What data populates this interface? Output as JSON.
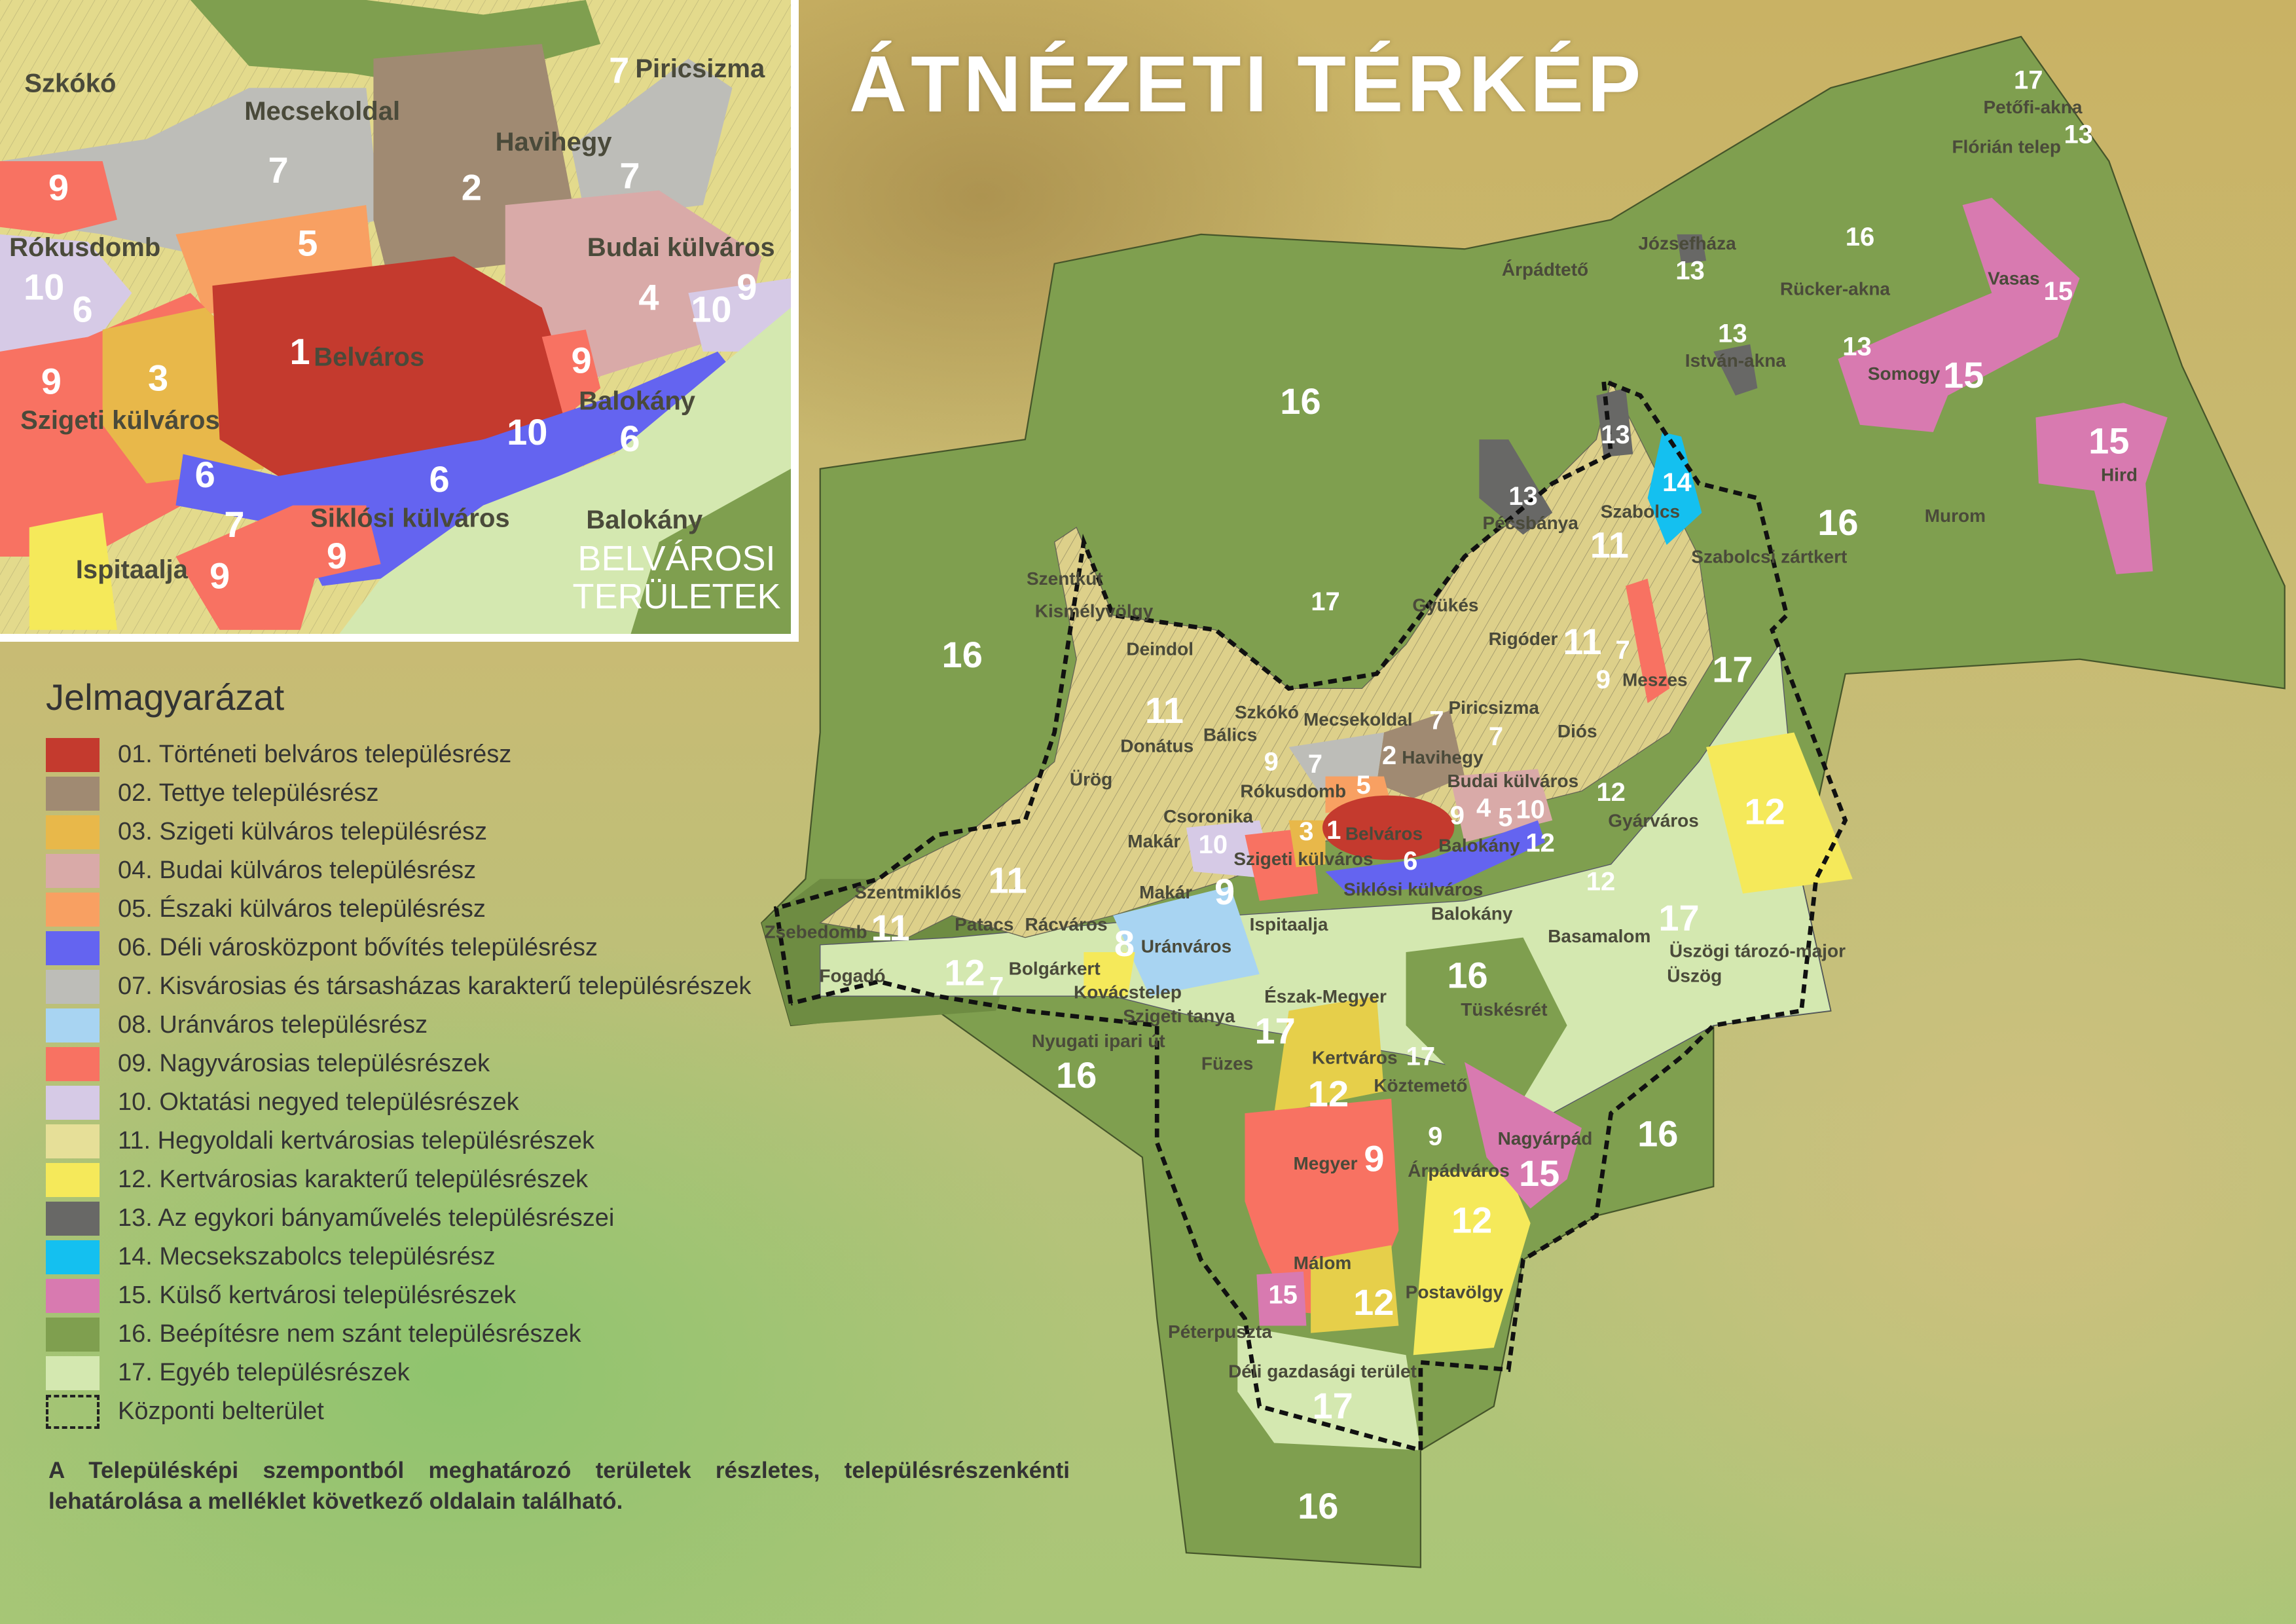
{
  "title": "ÁTNÉZETI TÉRKÉP",
  "inset": {
    "title_line1": "BELVÁROSI",
    "title_line2": "TERÜLETEK",
    "place_labels": [
      "Szkókó",
      "Mecsekoldal",
      "Havihegy",
      "Piricsizma",
      "Rókusdomb",
      "Budai külváros",
      "Belváros",
      "Szigeti külváros",
      "Balokány",
      "Siklósi külváros",
      "Ispitaalja",
      "Balokány"
    ],
    "number_labels": [
      "7",
      "7",
      "2",
      "7",
      "9",
      "5",
      "9",
      "10",
      "6",
      "4",
      "10",
      "3",
      "1",
      "9",
      "9",
      "6",
      "10",
      "6",
      "6",
      "7",
      "9",
      "9"
    ]
  },
  "main_map": {
    "place_labels": [
      "Petőfi-akna",
      "Flórián telep",
      "Józsefháza",
      "Árpádtető",
      "Rücker-akna",
      "István-akna",
      "Somogy",
      "Vasas",
      "Hird",
      "Pécsbánya",
      "Szabolcs",
      "Szabolcsi zártkert",
      "Murom",
      "Szentkút",
      "Kismélyvölgy",
      "Gyükés",
      "Deindol",
      "Rigóder",
      "Meszes",
      "Piricsizma",
      "Diós",
      "Szkókó",
      "Mecsekoldal",
      "Bálics",
      "Donátus",
      "Havihegy",
      "Budai külváros",
      "Rókusdomb",
      "Ürög",
      "Csoronika",
      "Gyárváros",
      "Belváros",
      "Makár",
      "Szigeti külváros",
      "Balokány",
      "Szentmiklós",
      "Siklósi külváros",
      "Zsebedomb",
      "Patacs",
      "Rácváros",
      "Makár",
      "Ispitaalja",
      "Balokány",
      "Uránváros",
      "Basamalom",
      "Üszögi tározó-major",
      "Fogadó",
      "Bolgárkert",
      "Kovácstelep",
      "Üszög",
      "Szigeti tanya",
      "Észak-Megyer",
      "Nyugati ipari út",
      "Tüskésrét",
      "Kertváros",
      "Füzes",
      "Köztemető",
      "Megyer",
      "Árpádváros",
      "Nagyárpád",
      "Málom",
      "Postavölgy",
      "Péterpuszta",
      "Déli gazdasági terület"
    ],
    "number_labels": [
      "17",
      "13",
      "16",
      "13",
      "15",
      "13",
      "13",
      "15",
      "16",
      "13",
      "14",
      "13",
      "15",
      "11",
      "16",
      "17",
      "16",
      "11",
      "7",
      "17",
      "9",
      "11",
      "7",
      "9",
      "7",
      "2",
      "7",
      "5",
      "4",
      "10",
      "12",
      "12",
      "9",
      "1",
      "3",
      "10",
      "9",
      "12",
      "5",
      "6",
      "11",
      "11",
      "12",
      "8",
      "17",
      "7",
      "12",
      "16",
      "17",
      "16",
      "12",
      "17",
      "16",
      "9",
      "15",
      "9",
      "12",
      "15",
      "12",
      "17",
      "16"
    ]
  },
  "legend": {
    "title": "Jelmagyarázat",
    "items": [
      {
        "label": "01. Történeti belváros településrész",
        "color": "#c43a2e"
      },
      {
        "label": "02. Tettye településrész",
        "color": "#a08a72"
      },
      {
        "label": "03. Szigeti külváros településrész",
        "color": "#e8b84a"
      },
      {
        "label": "04. Budai külváros településrész",
        "color": "#d9aaa8"
      },
      {
        "label": "05. Északi külváros településrész",
        "color": "#f8a062"
      },
      {
        "label": "06. Déli városközpont bővítés településrész",
        "color": "#6464f0"
      },
      {
        "label": "07. Kisvárosias és társasházas karakterű településrészek",
        "color": "#bdbdb8"
      },
      {
        "label": "08. Uránváros településrész",
        "color": "#a8d4f2"
      },
      {
        "label": "09. Nagyvárosias településrészek",
        "color": "#f87262"
      },
      {
        "label": "10. Oktatási negyed településrészek",
        "color": "#d6cae6"
      },
      {
        "label": "11. Hegyoldali kertvárosias településrészek",
        "color": "#e6df98"
      },
      {
        "label": "12. Kertvárosias karakterű településrészek",
        "color": "#f5e95a"
      },
      {
        "label": "13. Az egykori bányaművelés településrészei",
        "color": "#686866"
      },
      {
        "label": "14. Mecsekszabolcs településrész",
        "color": "#14c0f0"
      },
      {
        "label": "15. Külső kertvárosi településrészek",
        "color": "#d87ab0"
      },
      {
        "label": "16. Beépítésre nem szánt településrészek",
        "color": "#7f9f4f"
      },
      {
        "label": "17. Egyéb településrészek",
        "color": "#d4e8b0"
      }
    ],
    "boundary_label": "Központi belterület"
  },
  "note": "A Településképi szempontból meghatározó területek részletes, településrészenkénti lehatárolása a melléklet következő oldalain található."
}
